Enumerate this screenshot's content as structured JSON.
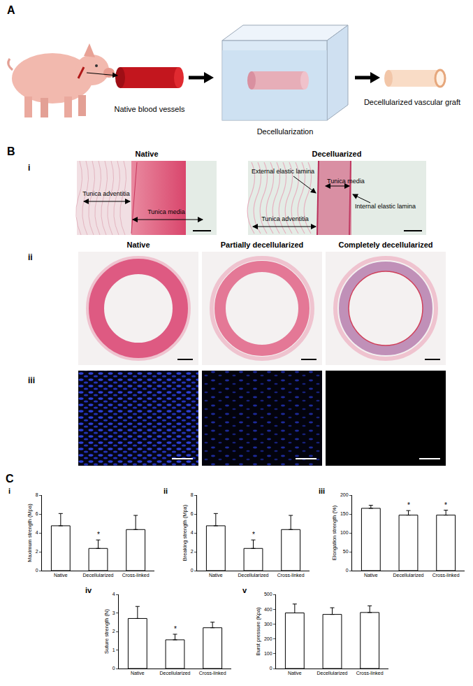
{
  "panels": {
    "A": {
      "label": "A",
      "labels": [
        "Native blood vessels",
        "Decellularization",
        "Decellularized vascular graft"
      ]
    },
    "B": {
      "label": "B",
      "i": {
        "label": "i",
        "columns": [
          "Native",
          "Decelluarized"
        ],
        "native_labels": [
          "Tunica adventitia",
          "Tunica media"
        ],
        "decellularized_labels": [
          "External elastic lamina",
          "Tunica media",
          "Internal elastic lamina",
          "Tunica adventitia"
        ]
      },
      "ii": {
        "label": "ii",
        "columns": [
          "Native",
          "Partially decellularized",
          "Completely decellularized"
        ]
      },
      "iii": {
        "label": "iii"
      }
    },
    "C": {
      "label": "C"
    }
  },
  "chart_data": [
    {
      "type": "bar",
      "label": "i",
      "ylabel": "Maximum strength (Mpa)",
      "categories": [
        "Native",
        "Decellularized",
        "Cross-linked"
      ],
      "values": [
        4.75,
        2.35,
        4.35
      ],
      "errors": [
        1.3,
        0.9,
        1.5
      ],
      "color": "#ffffff",
      "ylim": [
        0,
        8
      ],
      "yticks": [
        0,
        2,
        4,
        6,
        8
      ],
      "grid": false,
      "annotations": [
        {
          "category": "Decellularized",
          "text": "*"
        }
      ]
    },
    {
      "type": "bar",
      "label": "ii",
      "ylabel": "Breaking strength (Mpa)",
      "categories": [
        "Native",
        "Decellularized",
        "Cross-linked"
      ],
      "values": [
        4.75,
        2.35,
        4.35
      ],
      "errors": [
        1.3,
        0.9,
        1.5
      ],
      "color": "#ffffff",
      "ylim": [
        0,
        8
      ],
      "yticks": [
        0,
        2,
        4,
        6,
        8
      ],
      "grid": false,
      "annotations": [
        {
          "category": "Decellularized",
          "text": "*"
        }
      ]
    },
    {
      "type": "bar",
      "label": "iii",
      "ylabel": "Elongation strength (%)",
      "categories": [
        "Native",
        "Decellularized",
        "Cross-linked"
      ],
      "values": [
        165,
        147,
        147
      ],
      "errors": [
        8,
        12,
        13
      ],
      "color": "#ffffff",
      "ylim": [
        0,
        200
      ],
      "yticks": [
        0,
        50,
        100,
        150,
        200
      ],
      "grid": false,
      "annotations": [
        {
          "category": "Decellularized",
          "text": "*"
        },
        {
          "category": "Cross-linked",
          "text": "*"
        }
      ]
    },
    {
      "type": "bar",
      "label": "iv",
      "ylabel": "Suture strength (N)",
      "categories": [
        "Native",
        "Decellularized",
        "Cross-linked"
      ],
      "values": [
        2.7,
        1.55,
        2.2
      ],
      "errors": [
        0.65,
        0.3,
        0.3
      ],
      "color": "#ffffff",
      "ylim": [
        0,
        4
      ],
      "yticks": [
        0,
        1,
        2,
        3,
        4
      ],
      "grid": false,
      "annotations": [
        {
          "category": "Decellularized",
          "text": "*"
        }
      ]
    },
    {
      "type": "bar",
      "label": "v",
      "ylabel": "Burst pressure (Kpa)",
      "categories": [
        "Native",
        "Decellularized",
        "Cross-linked"
      ],
      "values": [
        375,
        365,
        378
      ],
      "errors": [
        60,
        45,
        45
      ],
      "color": "#ffffff",
      "ylim": [
        0,
        500
      ],
      "yticks": [
        0,
        100,
        200,
        300,
        400,
        500
      ],
      "grid": false,
      "annotations": []
    }
  ]
}
